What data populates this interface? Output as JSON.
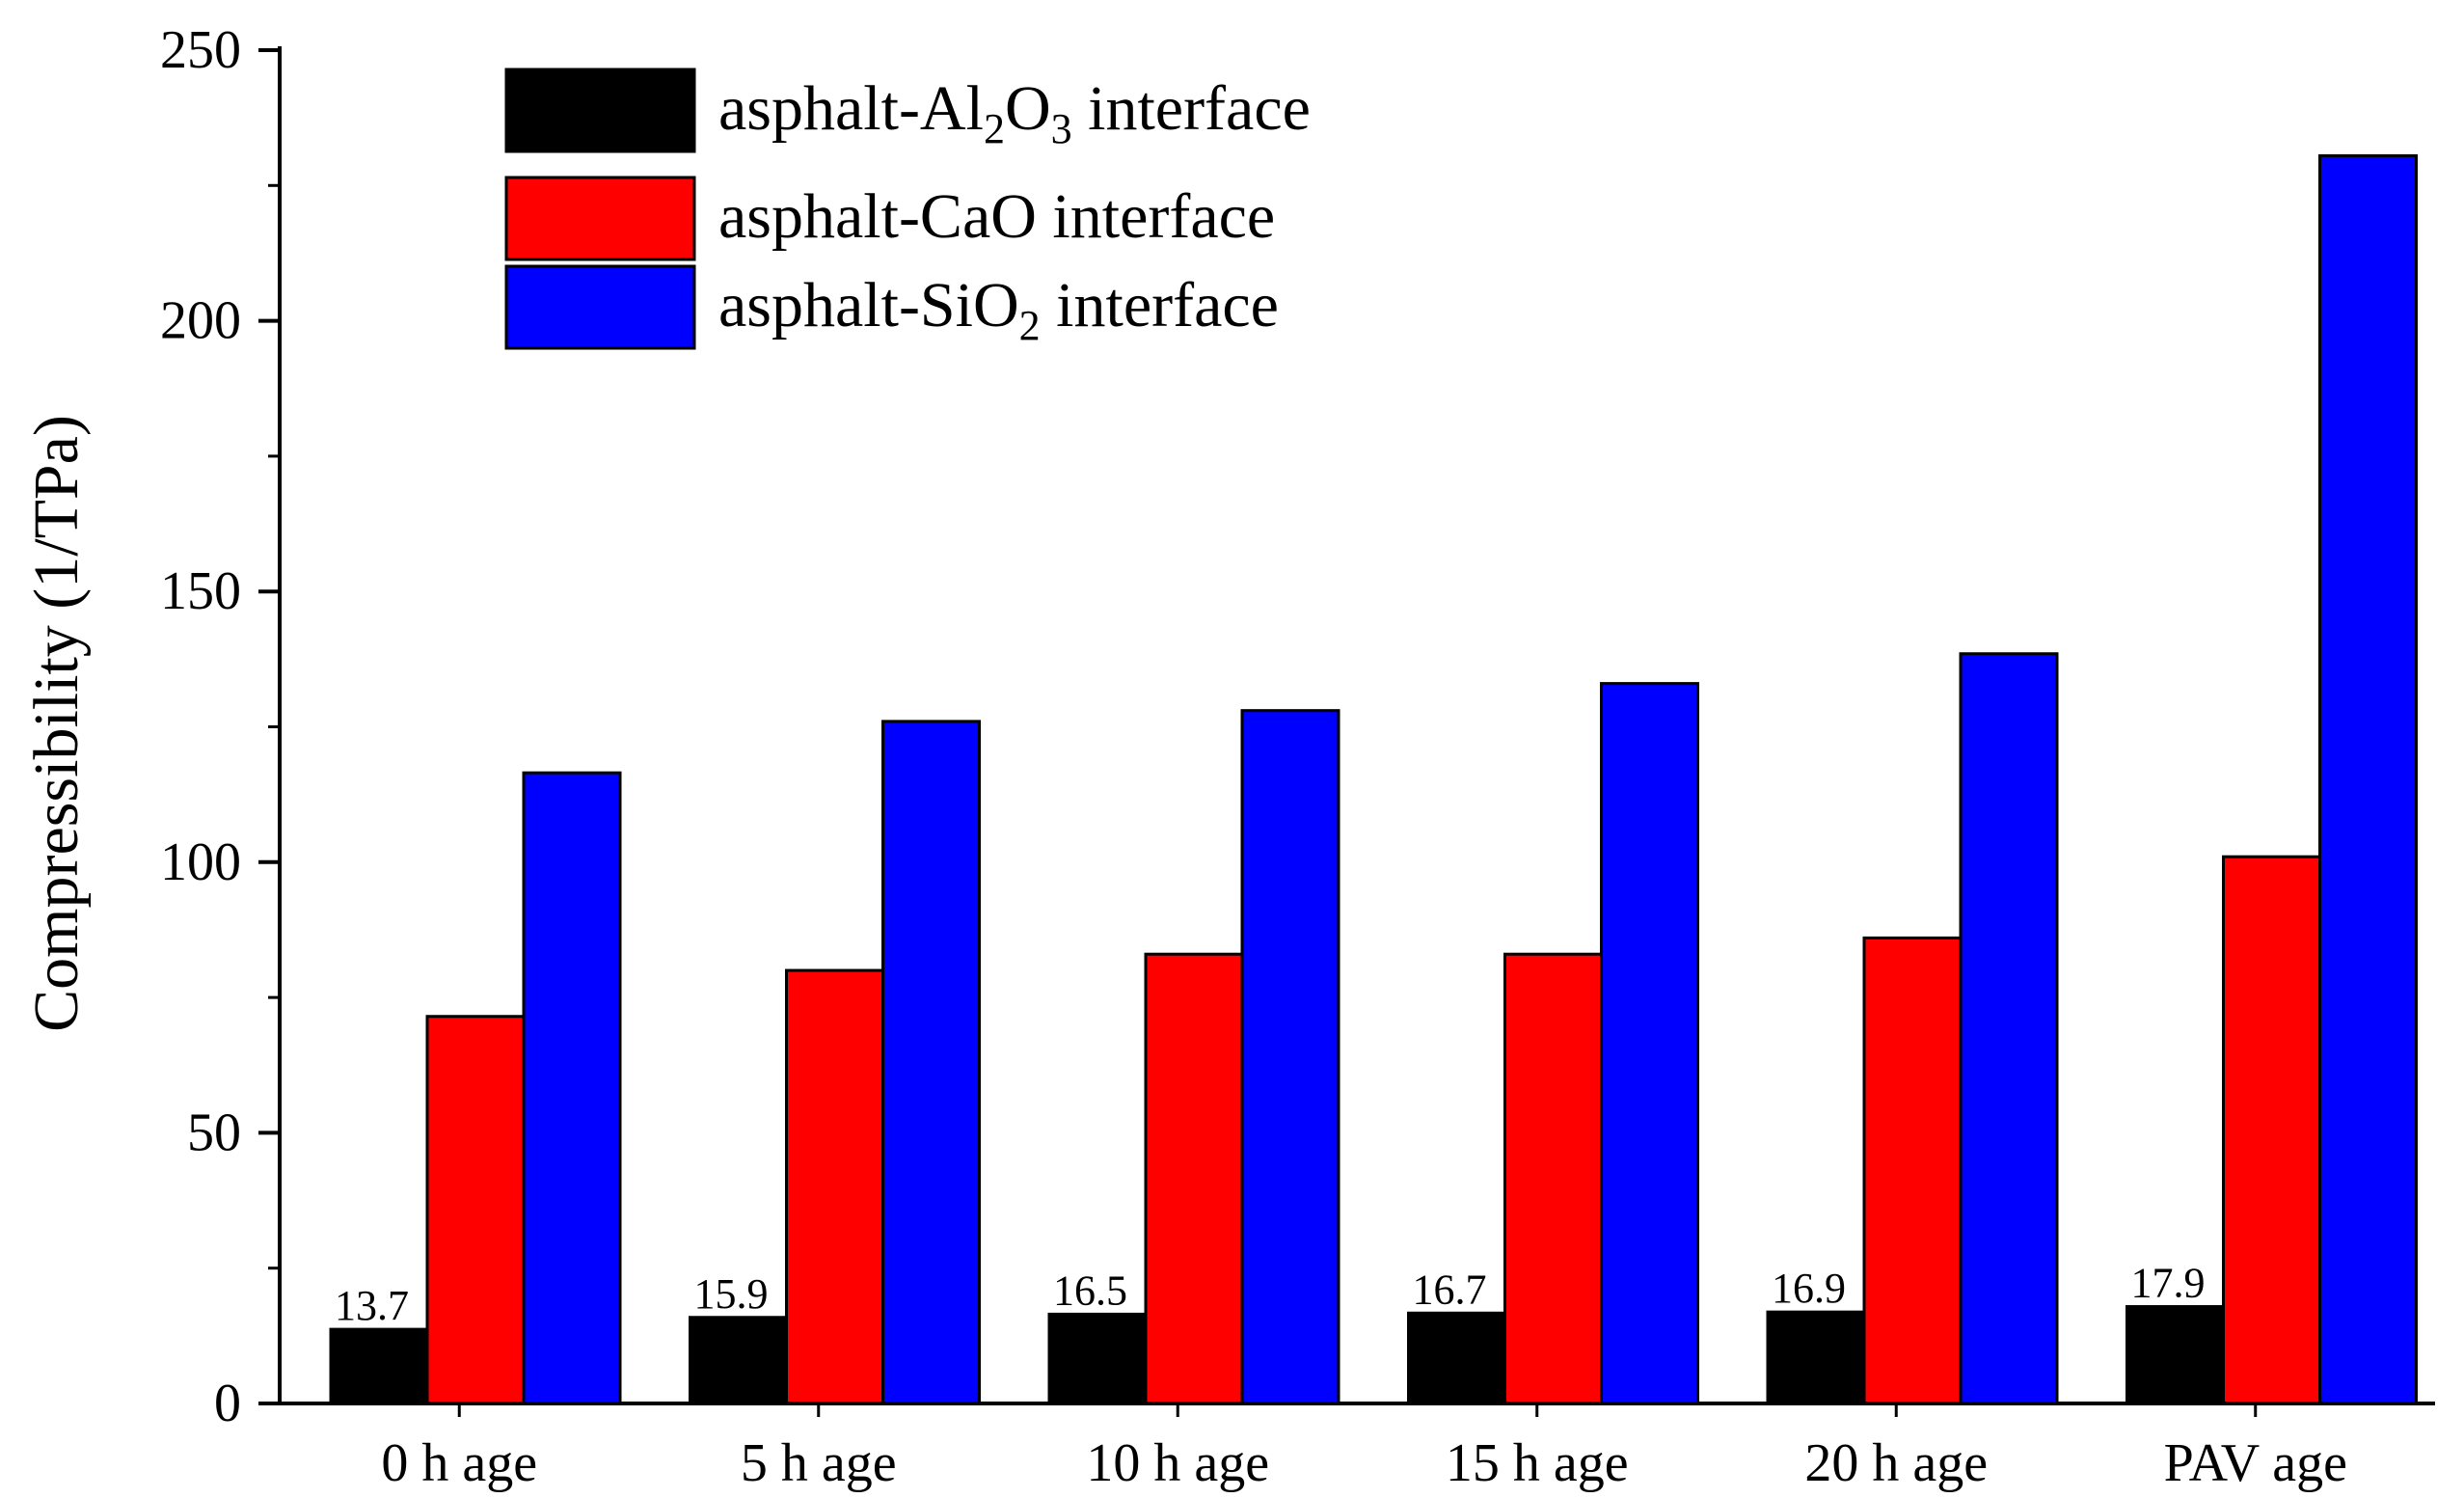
{
  "chart_data": {
    "type": "bar",
    "title": "",
    "xlabel": "",
    "ylabel": "Compressibility (1/TPa)",
    "ylim": [
      0,
      250
    ],
    "yticks": [
      "0",
      "50",
      "100",
      "150",
      "200",
      "250"
    ],
    "categories": [
      "0 h age",
      "5 h age",
      "10 h age",
      "15 h age",
      "20 h age",
      "PAV age"
    ],
    "series": [
      {
        "name": "asphalt-Al2O3 interface",
        "legend": {
          "base": "asphalt-Al",
          "sub1": "2",
          "mid": "O",
          "sub2": "3",
          "tail": " interface"
        },
        "color": "#000000",
        "values": [
          13.7,
          15.9,
          16.5,
          16.7,
          16.9,
          17.9
        ],
        "labels": [
          "13.7",
          "15.9",
          "16.5",
          "16.7",
          "16.9",
          "17.9"
        ]
      },
      {
        "name": "asphalt-CaO interface",
        "legend": {
          "base": "asphalt-CaO",
          "sub1": "",
          "mid": "",
          "sub2": "",
          "tail": " interface"
        },
        "color": "#ff0000",
        "values": [
          71.5,
          80,
          83,
          83,
          86,
          101
        ]
      },
      {
        "name": "asphalt-SiO2 interface",
        "legend": {
          "base": "asphalt-SiO",
          "sub1": "2",
          "mid": "",
          "sub2": "",
          "tail": " interface"
        },
        "color": "#0000ff",
        "values": [
          116.5,
          126,
          128,
          133,
          138.5,
          230.5
        ]
      }
    ],
    "legend_position": "top-left",
    "grid": false
  }
}
